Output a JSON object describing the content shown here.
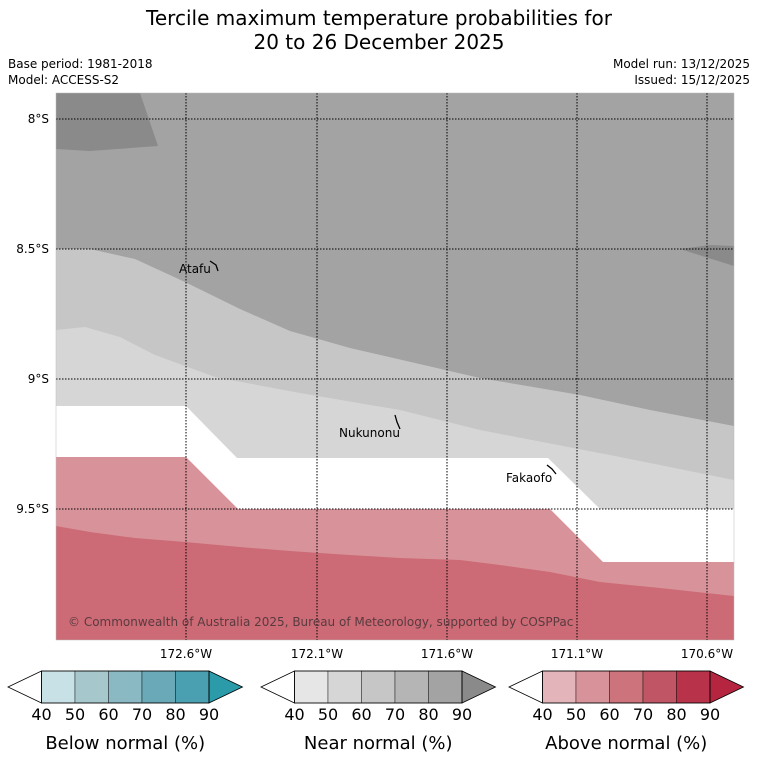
{
  "title": {
    "line1": "Tercile maximum temperature probabilities for",
    "line2": "20 to 26 December 2025"
  },
  "meta": {
    "base_period": "Base period: 1981-2018",
    "model": "Model: ACCESS-S2",
    "model_run": "Model run: 13/12/2025",
    "issued": "Issued: 15/12/2025"
  },
  "map": {
    "lat_labels": [
      "8°S",
      "8.5°S",
      "9°S",
      "9.5°S"
    ],
    "lon_labels": [
      "172.6°W",
      "172.1°W",
      "171.6°W",
      "171.1°W",
      "170.6°W"
    ],
    "places": [
      "Atafu",
      "Nukunonu",
      "Fakaofo"
    ],
    "copyright": "© Commonwealth of Australia 2025, Bureau of Meteorology, supported by COSPPac"
  },
  "legends": [
    {
      "label": "Below normal (%)",
      "ticks": [
        "40",
        "50",
        "60",
        "70",
        "80",
        "90"
      ],
      "colors": [
        "#c7e1e6",
        "#a6c8cd",
        "#8ab8c3",
        "#6aa9b7",
        "#4aa0b1",
        "#2b9aa9"
      ]
    },
    {
      "label": "Near normal (%)",
      "ticks": [
        "40",
        "50",
        "60",
        "70",
        "80",
        "90"
      ],
      "colors": [
        "#e6e6e6",
        "#d6d6d6",
        "#c6c6c6",
        "#b5b5b5",
        "#a3a3a3",
        "#8a8a8a"
      ]
    },
    {
      "label": "Above normal (%)",
      "ticks": [
        "40",
        "50",
        "60",
        "70",
        "80",
        "90"
      ],
      "colors": [
        "#e3b5ba",
        "#d8939a",
        "#cc737b",
        "#c05566",
        "#b83349",
        "#b5253f"
      ]
    }
  ]
}
